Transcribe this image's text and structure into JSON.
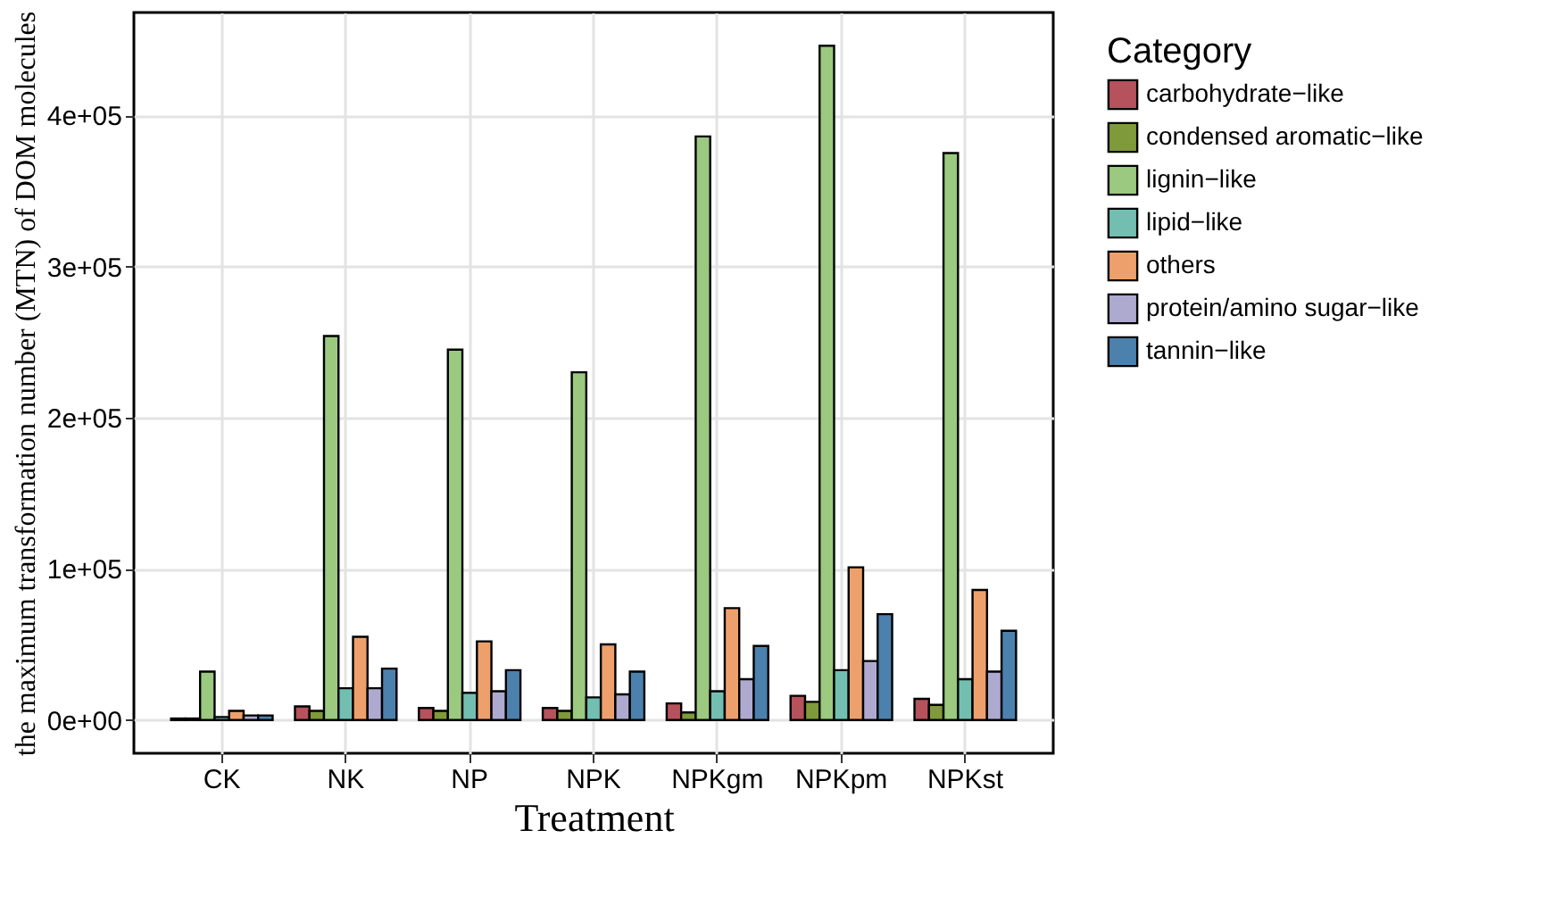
{
  "chart_data": {
    "type": "bar",
    "xlabel": "Treatment",
    "ylabel": "the maximum transformation number (MTN) of DOM molecules",
    "legend_title": "Category",
    "legend": "right",
    "grid": true,
    "categories": [
      "CK",
      "NK",
      "NP",
      "NPK",
      "NPKgm",
      "NPKpm",
      "NPKst"
    ],
    "ylim": [
      -22000,
      468000
    ],
    "yticks": [
      {
        "value": 0,
        "label": "0e+00"
      },
      {
        "value": 100000,
        "label": "1e+05"
      },
      {
        "value": 200000,
        "label": "2e+05"
      },
      {
        "value": 300000,
        "label": "3e+05"
      },
      {
        "value": 400000,
        "label": "4e+05"
      }
    ],
    "series": [
      {
        "name": "carbohydrate−like",
        "color": "#b5525c",
        "values": [
          1000,
          9000,
          8000,
          8000,
          11000,
          16000,
          14000
        ]
      },
      {
        "name": "condensed aromatic−like",
        "color": "#7f9a3a",
        "values": [
          1000,
          6000,
          6000,
          6000,
          5000,
          12000,
          10000
        ]
      },
      {
        "name": "lignin−like",
        "color": "#9ac97f",
        "values": [
          32000,
          254000,
          245000,
          230000,
          386000,
          446000,
          375000
        ]
      },
      {
        "name": "lipid−like",
        "color": "#72bfb2",
        "values": [
          2000,
          21000,
          18000,
          15000,
          19000,
          33000,
          27000
        ]
      },
      {
        "name": "others",
        "color": "#eda06c",
        "values": [
          6000,
          55000,
          52000,
          50000,
          74000,
          101000,
          86000
        ]
      },
      {
        "name": "protein/amino sugar−like",
        "color": "#aeaacf",
        "values": [
          3000,
          21000,
          19000,
          17000,
          27000,
          39000,
          32000
        ]
      },
      {
        "name": "tannin−like",
        "color": "#4c81ad",
        "values": [
          3000,
          34000,
          33000,
          32000,
          49000,
          70000,
          59000
        ]
      }
    ]
  }
}
